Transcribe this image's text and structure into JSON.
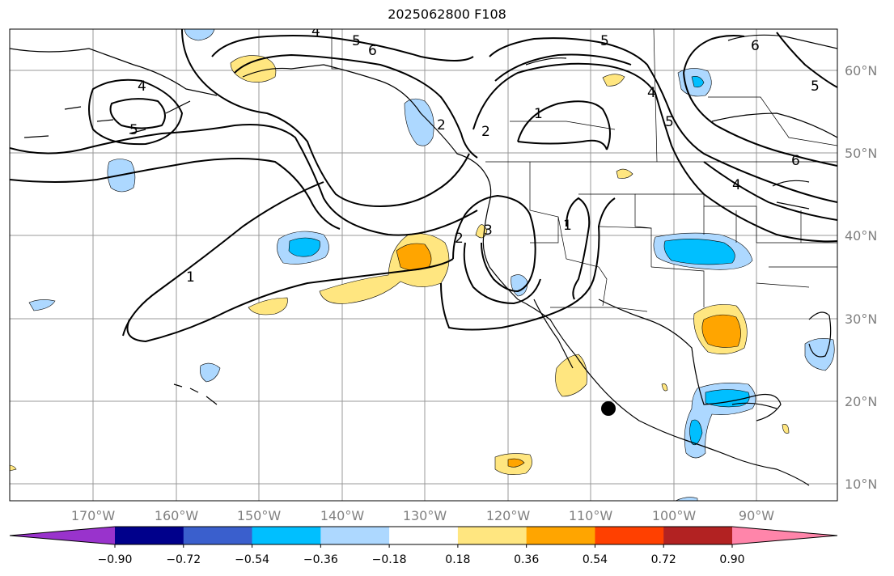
{
  "title": "2025062800 F108",
  "lon_labels": [
    "170°W",
    "160°W",
    "150°W",
    "140°W",
    "130°W",
    "120°W",
    "110°W",
    "100°W",
    "90°W"
  ],
  "lat_labels": [
    "60°N",
    "50°N",
    "40°N",
    "30°N",
    "20°N",
    "10°N"
  ],
  "colorbar": {
    "tick_labels": [
      "−0.90",
      "−0.72",
      "−0.54",
      "−0.36",
      "−0.18",
      "0.18",
      "0.36",
      "0.54",
      "0.72",
      "0.90"
    ],
    "colors": [
      "#9933cc",
      "#00008b",
      "#3a5fcd",
      "#00bfff",
      "#add8ff",
      "#ffffff",
      "#ffe680",
      "#ffa500",
      "#ff4000",
      "#b22222",
      "#ff85aa"
    ]
  },
  "contour_labels": [
    "4",
    "5",
    "6",
    "4",
    "5",
    "1",
    "2",
    "3",
    "2",
    "1",
    "5",
    "6",
    "4",
    "5",
    "6",
    "5",
    "4",
    "1",
    "2"
  ],
  "fill_colors": {
    "light_blue": "#add8ff",
    "blue": "#00bfff",
    "light_yellow": "#ffe680",
    "orange": "#ffa500"
  },
  "marker": {
    "lon": "108°W",
    "lat": "19°N"
  }
}
